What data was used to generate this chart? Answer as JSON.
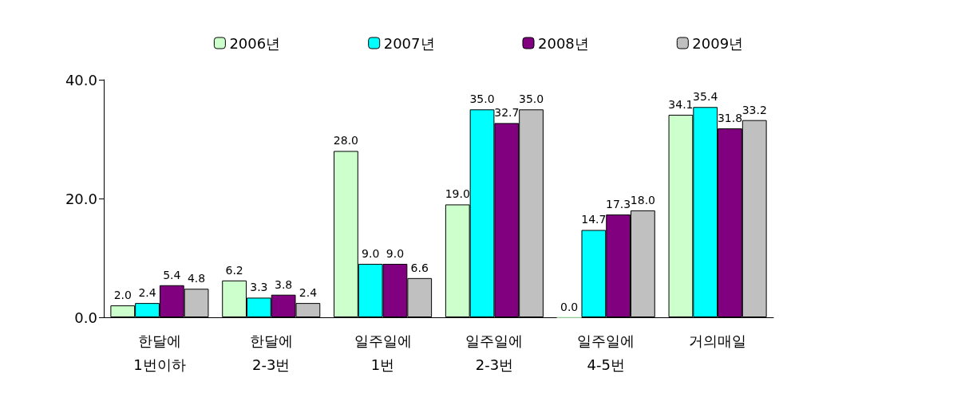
{
  "chart_data": {
    "type": "bar",
    "categories": [
      "한달에\n1번이하",
      "한달에\n2-3번",
      "일주일에\n1번",
      "일주일에\n2-3번",
      "일주일에\n4-5번",
      "거의매일"
    ],
    "series": [
      {
        "name": "2006년",
        "color": "#ccffcc",
        "values": [
          2.0,
          6.2,
          28.0,
          19.0,
          0.0,
          34.1
        ],
        "value_labels": [
          "2.0",
          "6.2",
          "28.0",
          "19.0",
          "0.0",
          "34.1"
        ]
      },
      {
        "name": "2007년",
        "color": "#00ffff",
        "values": [
          2.4,
          3.3,
          9.0,
          35.0,
          14.7,
          35.4
        ],
        "value_labels": [
          "2.4",
          "3.3",
          "9.0",
          "35.0",
          "14.7",
          "35.4"
        ]
      },
      {
        "name": "2008년",
        "color": "#800080",
        "values": [
          5.4,
          3.8,
          9.0,
          32.7,
          17.3,
          31.8
        ],
        "value_labels": [
          "5.4",
          "3.8",
          "9.0",
          "32.7",
          "17.3",
          "31.8"
        ]
      },
      {
        "name": "2009년",
        "color": "#c0c0c0",
        "values": [
          4.8,
          2.4,
          6.6,
          35.0,
          18.0,
          33.2
        ],
        "value_labels": [
          "4.8",
          "2.4",
          "6.6",
          "35.0",
          "18.0",
          "33.2"
        ]
      }
    ],
    "ylim": [
      0,
      40
    ],
    "yticks": [
      {
        "value": 0,
        "label": "0.0"
      },
      {
        "value": 20,
        "label": "20.0"
      },
      {
        "value": 40,
        "label": "40.0"
      }
    ],
    "grid": false,
    "legend": "top"
  }
}
